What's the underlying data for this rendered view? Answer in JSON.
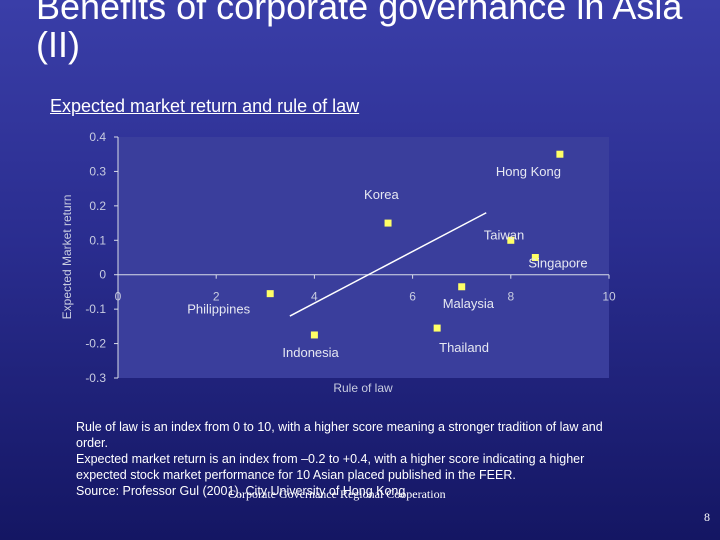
{
  "slide": {
    "title": "Benefits of corporate governance in Asia (II)",
    "subtitle": "Expected market return and rule of law",
    "caption_lines": [
      "Rule of law is an index from 0 to 10, with a higher score meaning a stronger tradition of law and order.",
      "Expected market return is an index from –0.2 to +0.4, with a higher score indicating a higher expected stock market performance for 10 Asian placed published in the FEER.",
      "Source: Professor Gul (2001), City University of Hong Kong"
    ],
    "footer": "Corporate Governance Regional Cooperation",
    "page_number": "8"
  },
  "colors": {
    "background_top": "#3a3ea8",
    "background_bottom": "#141663",
    "plot_background": "#3a3e9c",
    "marker": "#ffff66",
    "axis": "#d8dce8",
    "axis_text": "#c8cce0",
    "trend_line": "#ffffff"
  },
  "chart_data": {
    "type": "scatter",
    "xlabel": "Rule of law",
    "ylabel": "Expected Market return",
    "xlim": [
      0,
      10
    ],
    "ylim": [
      -0.3,
      0.4
    ],
    "xticks": [
      "0",
      "2",
      "4",
      "6",
      "8",
      "10"
    ],
    "yticks": [
      "0.4",
      "0.3",
      "0.2",
      "0.1",
      "0",
      "-0.1",
      "-0.2",
      "-0.3"
    ],
    "points": [
      {
        "label": "Hong Kong",
        "x": 9.0,
        "y": 0.35
      },
      {
        "label": "Korea",
        "x": 5.5,
        "y": 0.15
      },
      {
        "label": "Taiwan",
        "x": 8.0,
        "y": 0.1
      },
      {
        "label": "Singapore",
        "x": 8.5,
        "y": 0.05
      },
      {
        "label": "Philippines",
        "x": 3.1,
        "y": -0.055
      },
      {
        "label": "Malaysia",
        "x": 7.0,
        "y": -0.035
      },
      {
        "label": "Indonesia",
        "x": 4.0,
        "y": -0.175
      },
      {
        "label": "Thailand",
        "x": 6.5,
        "y": -0.155
      }
    ],
    "trend_line": {
      "x": [
        3.5,
        7.5
      ],
      "y": [
        -0.12,
        0.18
      ]
    },
    "grid": false,
    "legend": "none"
  }
}
